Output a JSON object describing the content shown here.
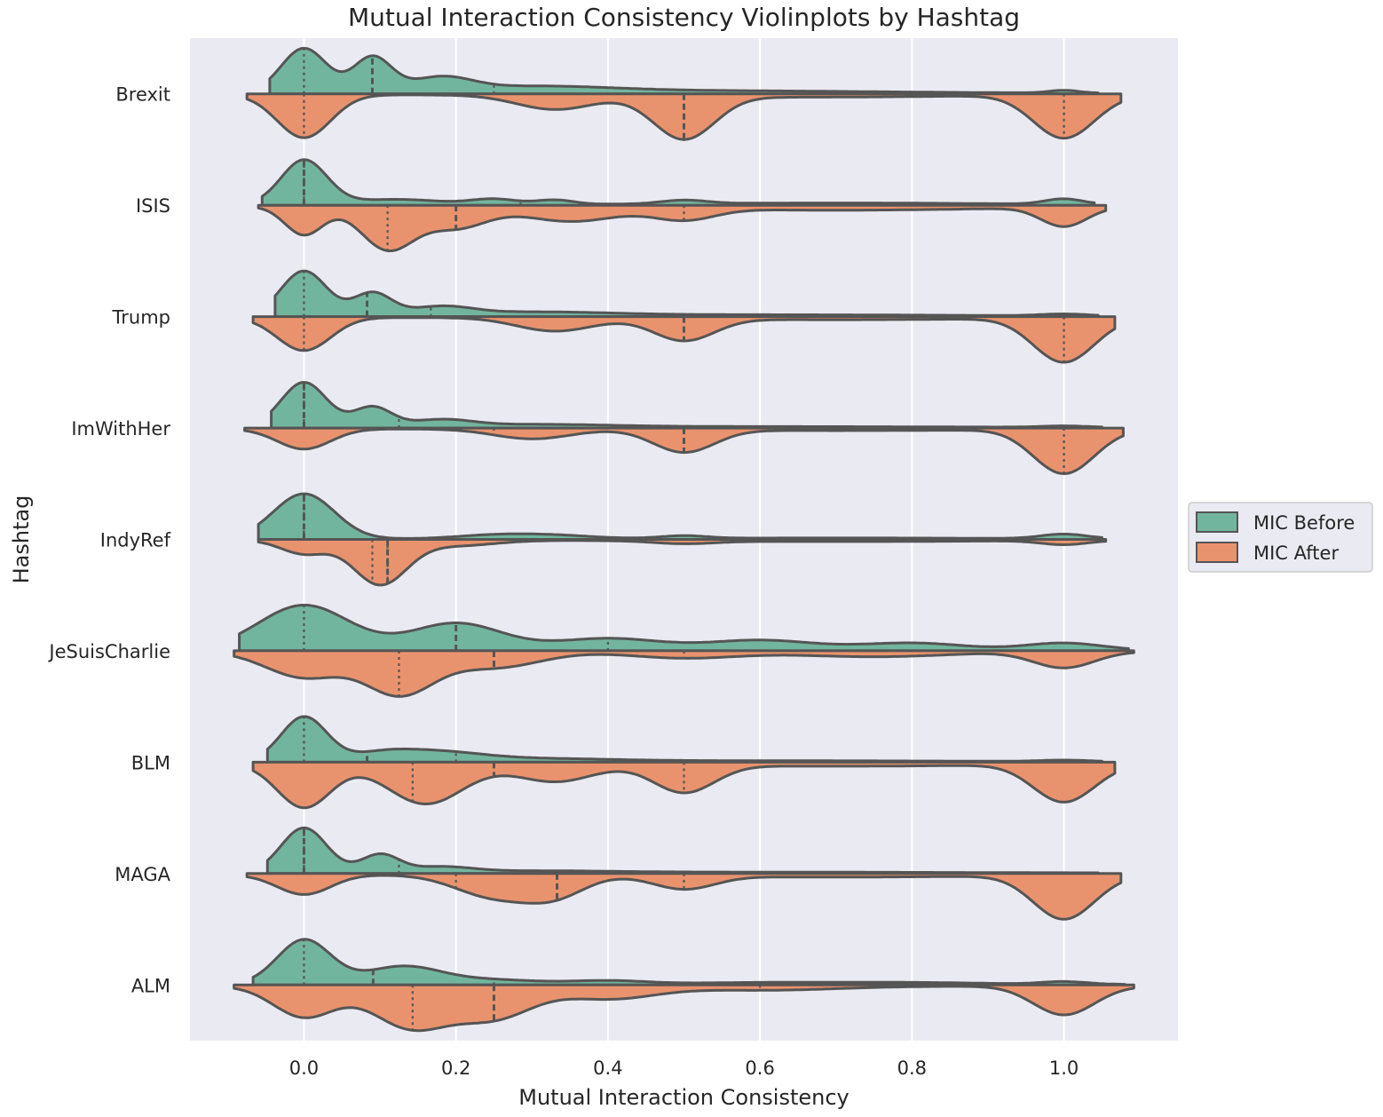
{
  "chart_data": {
    "type": "violin",
    "title": "Mutual Interaction Consistency Violinplots by Hashtag",
    "xlabel": "Mutual Interaction Consistency",
    "ylabel": "Hashtag",
    "xlim": [
      -0.15,
      1.15
    ],
    "xticks": [
      "0.0",
      "0.2",
      "0.4",
      "0.6",
      "0.8",
      "1.0"
    ],
    "xtick_values": [
      0.0,
      0.2,
      0.4,
      0.6,
      0.8,
      1.0
    ],
    "grid": true,
    "split": true,
    "inner": "quartile",
    "legend": {
      "position": "center-right",
      "entries": [
        "MIC Before",
        "MIC After"
      ]
    },
    "series": [
      {
        "name": "MIC Before",
        "color": "#72b59e"
      },
      {
        "name": "MIC After",
        "color": "#e9936e"
      }
    ],
    "categories": [
      "Brexit",
      "ISIS",
      "Trump",
      "ImWithHer",
      "IndyRef",
      "JeSuisCharlie",
      "BLM",
      "MAGA",
      "ALM"
    ],
    "violins": [
      {
        "category": "Brexit",
        "before": {
          "range": [
            -0.045,
            1.045
          ],
          "peaks": [
            [
              0.0,
              0.03,
              1.0
            ],
            [
              0.09,
              0.025,
              0.78
            ],
            [
              0.18,
              0.04,
              0.3
            ],
            [
              0.3,
              0.1,
              0.12
            ],
            [
              0.5,
              0.25,
              0.06
            ],
            [
              1.0,
              0.02,
              0.06
            ]
          ],
          "quartiles": [
            0.0,
            0.09,
            0.25
          ]
        },
        "after": {
          "range": [
            -0.075,
            1.075
          ],
          "peaks": [
            [
              0.0,
              0.035,
              0.55
            ],
            [
              0.33,
              0.05,
              0.18
            ],
            [
              0.5,
              0.04,
              0.55
            ],
            [
              0.65,
              0.2,
              0.03
            ],
            [
              1.0,
              0.04,
              0.55
            ]
          ],
          "quartiles": [
            0.0,
            0.5,
            1.0
          ]
        }
      },
      {
        "category": "ISIS",
        "before": {
          "range": [
            -0.055,
            1.04
          ],
          "peaks": [
            [
              0.0,
              0.03,
              1.0
            ],
            [
              0.12,
              0.06,
              0.12
            ],
            [
              0.25,
              0.03,
              0.12
            ],
            [
              0.33,
              0.025,
              0.1
            ],
            [
              0.5,
              0.03,
              0.08
            ],
            [
              0.7,
              0.2,
              0.04
            ],
            [
              1.0,
              0.025,
              0.12
            ]
          ],
          "quartiles": [
            0.0,
            0.0,
            0.285
          ]
        },
        "after": {
          "range": [
            -0.06,
            1.055
          ],
          "peaks": [
            [
              0.0,
              0.025,
              0.3
            ],
            [
              0.11,
              0.035,
              0.45
            ],
            [
              0.2,
              0.04,
              0.22
            ],
            [
              0.35,
              0.06,
              0.15
            ],
            [
              0.5,
              0.04,
              0.12
            ],
            [
              0.7,
              0.2,
              0.04
            ],
            [
              1.0,
              0.03,
              0.2
            ]
          ],
          "quartiles": [
            0.11,
            0.2,
            0.5
          ]
        }
      },
      {
        "category": "Trump",
        "before": {
          "range": [
            -0.038,
            1.045
          ],
          "peaks": [
            [
              0.0,
              0.03,
              1.0
            ],
            [
              0.09,
              0.025,
              0.5
            ],
            [
              0.18,
              0.04,
              0.18
            ],
            [
              0.3,
              0.1,
              0.08
            ],
            [
              0.6,
              0.25,
              0.03
            ],
            [
              1.0,
              0.03,
              0.04
            ]
          ],
          "quartiles": [
            0.0,
            0.083,
            0.167
          ]
        },
        "after": {
          "range": [
            -0.067,
            1.067
          ],
          "peaks": [
            [
              0.0,
              0.035,
              0.45
            ],
            [
              0.33,
              0.05,
              0.18
            ],
            [
              0.5,
              0.04,
              0.3
            ],
            [
              0.7,
              0.2,
              0.03
            ],
            [
              1.0,
              0.04,
              0.6
            ]
          ],
          "quartiles": [
            0.0,
            0.5,
            1.0
          ]
        }
      },
      {
        "category": "ImWithHer",
        "before": {
          "range": [
            -0.043,
            1.05
          ],
          "peaks": [
            [
              0.0,
              0.03,
              1.0
            ],
            [
              0.09,
              0.025,
              0.44
            ],
            [
              0.18,
              0.04,
              0.15
            ],
            [
              0.3,
              0.1,
              0.06
            ],
            [
              0.6,
              0.25,
              0.02
            ],
            [
              1.0,
              0.03,
              0.03
            ]
          ],
          "quartiles": [
            0.0,
            0.0,
            0.125
          ]
        },
        "after": {
          "range": [
            -0.078,
            1.078
          ],
          "peaks": [
            [
              0.0,
              0.035,
              0.25
            ],
            [
              0.3,
              0.05,
              0.12
            ],
            [
              0.5,
              0.04,
              0.28
            ],
            [
              0.7,
              0.2,
              0.02
            ],
            [
              1.0,
              0.04,
              0.55
            ]
          ],
          "quartiles": [
            0.25,
            0.5,
            1.0
          ]
        }
      },
      {
        "category": "IndyRef",
        "before": {
          "range": [
            -0.06,
            1.05
          ],
          "peaks": [
            [
              0.0,
              0.04,
              1.0
            ],
            [
              0.25,
              0.05,
              0.08
            ],
            [
              0.33,
              0.05,
              0.07
            ],
            [
              0.5,
              0.03,
              0.06
            ],
            [
              0.7,
              0.2,
              0.02
            ],
            [
              1.0,
              0.03,
              0.1
            ]
          ],
          "quartiles": [
            0.0,
            0.0,
            0.0
          ]
        },
        "after": {
          "range": [
            -0.06,
            1.055
          ],
          "peaks": [
            [
              0.0,
              0.03,
              0.2
            ],
            [
              0.1,
              0.035,
              0.65
            ],
            [
              0.2,
              0.05,
              0.08
            ],
            [
              0.5,
              0.04,
              0.04
            ],
            [
              0.7,
              0.2,
              0.02
            ],
            [
              1.0,
              0.03,
              0.06
            ]
          ],
          "quartiles": [
            0.09,
            0.11,
            0.11
          ]
        }
      },
      {
        "category": "JeSuisCharlie",
        "before": {
          "range": [
            -0.085,
            1.085
          ],
          "peaks": [
            [
              0.0,
              0.06,
              1.0
            ],
            [
              0.2,
              0.06,
              0.6
            ],
            [
              0.4,
              0.07,
              0.26
            ],
            [
              0.6,
              0.07,
              0.22
            ],
            [
              0.8,
              0.07,
              0.16
            ],
            [
              1.0,
              0.05,
              0.16
            ]
          ],
          "quartiles": [
            0.0,
            0.2,
            0.4
          ]
        },
        "after": {
          "range": [
            -0.092,
            1.092
          ],
          "peaks": [
            [
              0.0,
              0.05,
              0.4
            ],
            [
              0.125,
              0.045,
              0.65
            ],
            [
              0.25,
              0.06,
              0.25
            ],
            [
              0.5,
              0.07,
              0.1
            ],
            [
              0.75,
              0.1,
              0.08
            ],
            [
              1.0,
              0.04,
              0.25
            ]
          ],
          "quartiles": [
            0.125,
            0.25,
            0.5
          ]
        }
      },
      {
        "category": "BLM",
        "before": {
          "range": [
            -0.048,
            1.05
          ],
          "peaks": [
            [
              0.0,
              0.03,
              1.0
            ],
            [
              0.1,
              0.04,
              0.14
            ],
            [
              0.17,
              0.06,
              0.2
            ],
            [
              0.3,
              0.1,
              0.06
            ],
            [
              0.6,
              0.25,
              0.02
            ],
            [
              1.0,
              0.03,
              0.03
            ]
          ],
          "quartiles": [
            0.0,
            0.083,
            0.2
          ]
        },
        "after": {
          "range": [
            -0.067,
            1.067
          ],
          "peaks": [
            [
              0.0,
              0.035,
              0.35
            ],
            [
              0.16,
              0.05,
              0.32
            ],
            [
              0.33,
              0.05,
              0.14
            ],
            [
              0.5,
              0.04,
              0.22
            ],
            [
              0.7,
              0.2,
              0.02
            ],
            [
              1.0,
              0.04,
              0.3
            ]
          ],
          "quartiles": [
            0.143,
            0.25,
            0.5
          ]
        }
      },
      {
        "category": "MAGA",
        "before": {
          "range": [
            -0.048,
            1.045
          ],
          "peaks": [
            [
              0.0,
              0.03,
              1.0
            ],
            [
              0.1,
              0.025,
              0.4
            ],
            [
              0.18,
              0.04,
              0.12
            ],
            [
              0.3,
              0.1,
              0.04
            ],
            [
              0.6,
              0.25,
              0.02
            ]
          ],
          "quartiles": [
            0.0,
            0.0,
            0.125
          ]
        },
        "after": {
          "range": [
            -0.075,
            1.075
          ],
          "peaks": [
            [
              0.0,
              0.035,
              0.18
            ],
            [
              0.25,
              0.05,
              0.2
            ],
            [
              0.33,
              0.04,
              0.18
            ],
            [
              0.5,
              0.04,
              0.12
            ],
            [
              0.7,
              0.2,
              0.02
            ],
            [
              1.0,
              0.04,
              0.4
            ]
          ],
          "quartiles": [
            0.2,
            0.333,
            0.5
          ]
        }
      },
      {
        "category": "ALM",
        "before": {
          "range": [
            -0.067,
            1.08
          ],
          "peaks": [
            [
              0.0,
              0.035,
              1.0
            ],
            [
              0.13,
              0.05,
              0.4
            ],
            [
              0.25,
              0.06,
              0.1
            ],
            [
              0.4,
              0.05,
              0.08
            ],
            [
              0.6,
              0.1,
              0.04
            ],
            [
              0.8,
              0.1,
              0.04
            ],
            [
              1.0,
              0.03,
              0.06
            ]
          ],
          "quartiles": [
            0.0,
            0.091,
            0.25
          ]
        },
        "after": {
          "range": [
            -0.092,
            1.092
          ],
          "peaks": [
            [
              0.0,
              0.04,
              0.3
            ],
            [
              0.14,
              0.05,
              0.4
            ],
            [
              0.25,
              0.05,
              0.3
            ],
            [
              0.4,
              0.06,
              0.12
            ],
            [
              0.6,
              0.1,
              0.04
            ],
            [
              1.0,
              0.04,
              0.28
            ]
          ],
          "quartiles": [
            0.143,
            0.25,
            0.6
          ]
        }
      }
    ]
  }
}
